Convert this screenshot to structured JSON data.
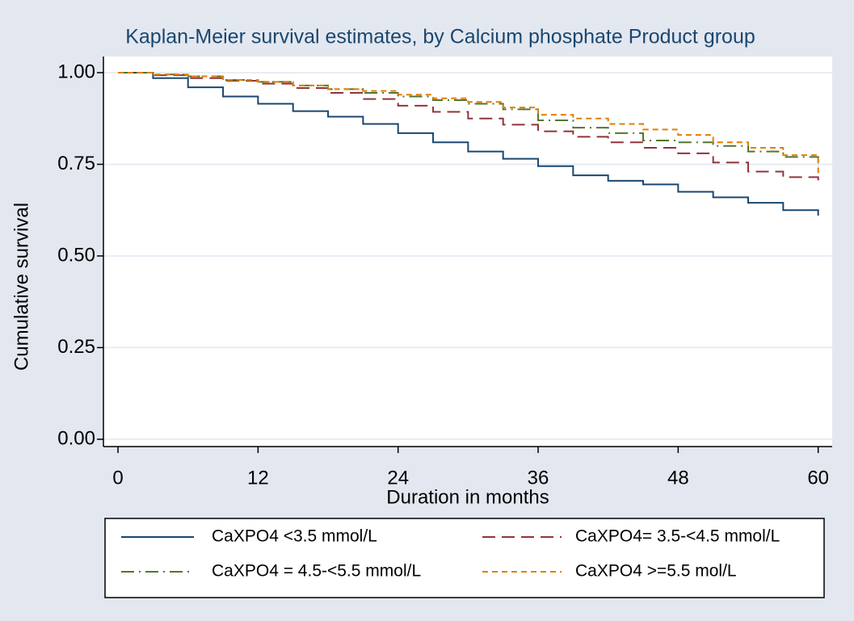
{
  "chart_data": {
    "type": "step",
    "title": "Kaplan-Meier survival estimates, by Calcium phosphate Product group",
    "xlabel": "Duration in months",
    "ylabel": "Cumulative survival",
    "x": [
      0,
      3,
      6,
      9,
      12,
      15,
      18,
      21,
      24,
      27,
      30,
      33,
      36,
      39,
      42,
      45,
      48,
      51,
      54,
      57,
      60
    ],
    "series": [
      {
        "name": "CaXPO4 <3.5 mmol/L",
        "color": "#1a476f",
        "dash": "none",
        "values": [
          1.0,
          0.985,
          0.96,
          0.935,
          0.915,
          0.895,
          0.88,
          0.86,
          0.835,
          0.81,
          0.785,
          0.765,
          0.745,
          0.72,
          0.705,
          0.695,
          0.675,
          0.66,
          0.645,
          0.625,
          0.61
        ]
      },
      {
        "name": "CaXPO4= 3.5-<4.5 mmol/L",
        "color": "#90353b",
        "dash": "16 8",
        "values": [
          1.0,
          0.993,
          0.985,
          0.978,
          0.97,
          0.958,
          0.945,
          0.928,
          0.91,
          0.893,
          0.875,
          0.858,
          0.84,
          0.825,
          0.81,
          0.795,
          0.78,
          0.755,
          0.73,
          0.715,
          0.7
        ]
      },
      {
        "name": "CaXPO4 = 4.5-<5.5 mmol/L",
        "color": "#55752f",
        "dash": "16 6 2 6",
        "values": [
          1.0,
          0.995,
          0.99,
          0.98,
          0.975,
          0.965,
          0.955,
          0.945,
          0.935,
          0.925,
          0.915,
          0.9,
          0.87,
          0.85,
          0.835,
          0.815,
          0.81,
          0.8,
          0.785,
          0.77,
          0.745
        ]
      },
      {
        "name": "CaXPO4 >=5.5 mol/L",
        "color": "#e37e00",
        "dash": "7 5",
        "values": [
          1.0,
          0.995,
          0.99,
          0.98,
          0.975,
          0.965,
          0.955,
          0.95,
          0.94,
          0.93,
          0.92,
          0.905,
          0.885,
          0.875,
          0.86,
          0.845,
          0.83,
          0.81,
          0.795,
          0.775,
          0.725
        ]
      }
    ],
    "xlim": [
      -1.25,
      61.2
    ],
    "ylim": [
      -0.02,
      1.044
    ],
    "xticks": [
      0,
      12,
      24,
      36,
      48,
      60
    ],
    "yticks": [
      {
        "value": 0,
        "label": "0.00"
      },
      {
        "value": 0.25,
        "label": "0.25"
      },
      {
        "value": 0.5,
        "label": "0.50"
      },
      {
        "value": 0.75,
        "label": "0.75"
      },
      {
        "value": 1,
        "label": "1.00"
      }
    ],
    "grid": true
  }
}
